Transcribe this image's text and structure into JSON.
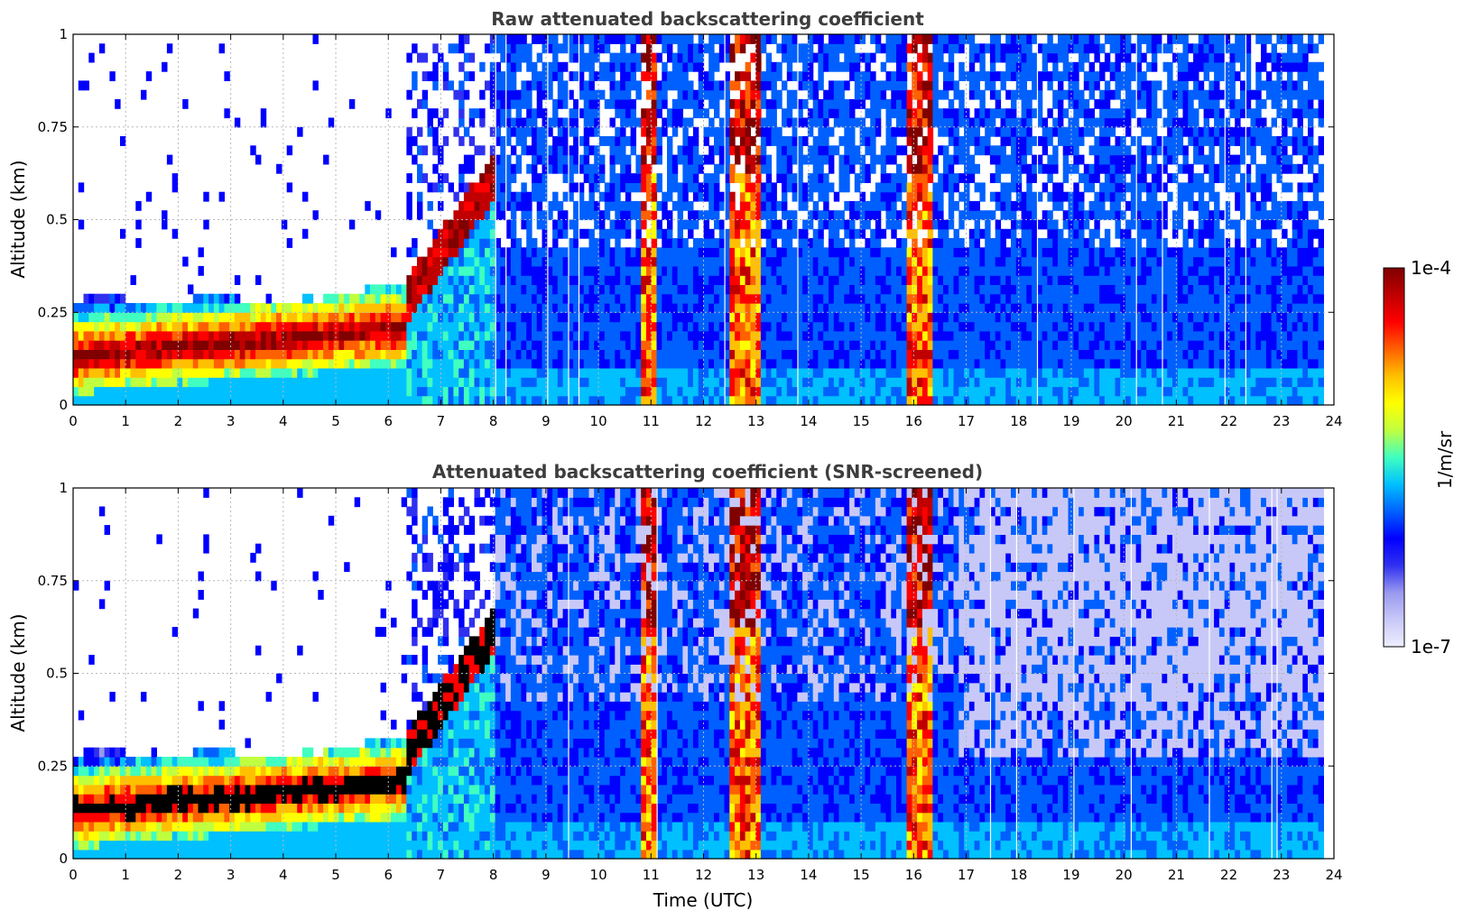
{
  "chart_data": [
    {
      "type": "heatmap",
      "title": "Raw attenuated backscattering coefficient",
      "xlabel": "",
      "ylabel": "Altitude (km)",
      "xlim": [
        0,
        24
      ],
      "ylim": [
        0,
        1
      ],
      "xticks": [
        "0",
        "1",
        "2",
        "3",
        "4",
        "5",
        "6",
        "7",
        "8",
        "9",
        "10",
        "11",
        "12",
        "13",
        "14",
        "15",
        "16",
        "17",
        "18",
        "19",
        "20",
        "21",
        "22",
        "23",
        "24"
      ],
      "yticks": [
        "0",
        "0.25",
        "0.5",
        "0.75",
        "1"
      ],
      "grid": true,
      "screened": false
    },
    {
      "type": "heatmap",
      "title": "Attenuated backscattering coefficient (SNR-screened)",
      "xlabel": "Time (UTC)",
      "ylabel": "Altitude (km)",
      "xlim": [
        0,
        24
      ],
      "ylim": [
        0,
        1
      ],
      "xticks": [
        "0",
        "1",
        "2",
        "3",
        "4",
        "5",
        "6",
        "7",
        "8",
        "9",
        "10",
        "11",
        "12",
        "13",
        "14",
        "15",
        "16",
        "17",
        "18",
        "19",
        "20",
        "21",
        "22",
        "23",
        "24"
      ],
      "yticks": [
        "0",
        "0.25",
        "0.5",
        "0.75",
        "1"
      ],
      "grid": true,
      "screened": true
    }
  ],
  "colorbar": {
    "label": "1/m/sr",
    "max_label": "1e-4",
    "min_label": "1e-7",
    "scale": "log",
    "colormap": "jet",
    "colors": [
      "#eeeeff",
      "#c8c8f8",
      "#9999f0",
      "#3030f0",
      "#0000ff",
      "#0060ff",
      "#00c0ff",
      "#40ffc0",
      "#c0ff40",
      "#ffff00",
      "#ffc000",
      "#ff6000",
      "#ff0000",
      "#c00000",
      "#800000"
    ]
  }
}
